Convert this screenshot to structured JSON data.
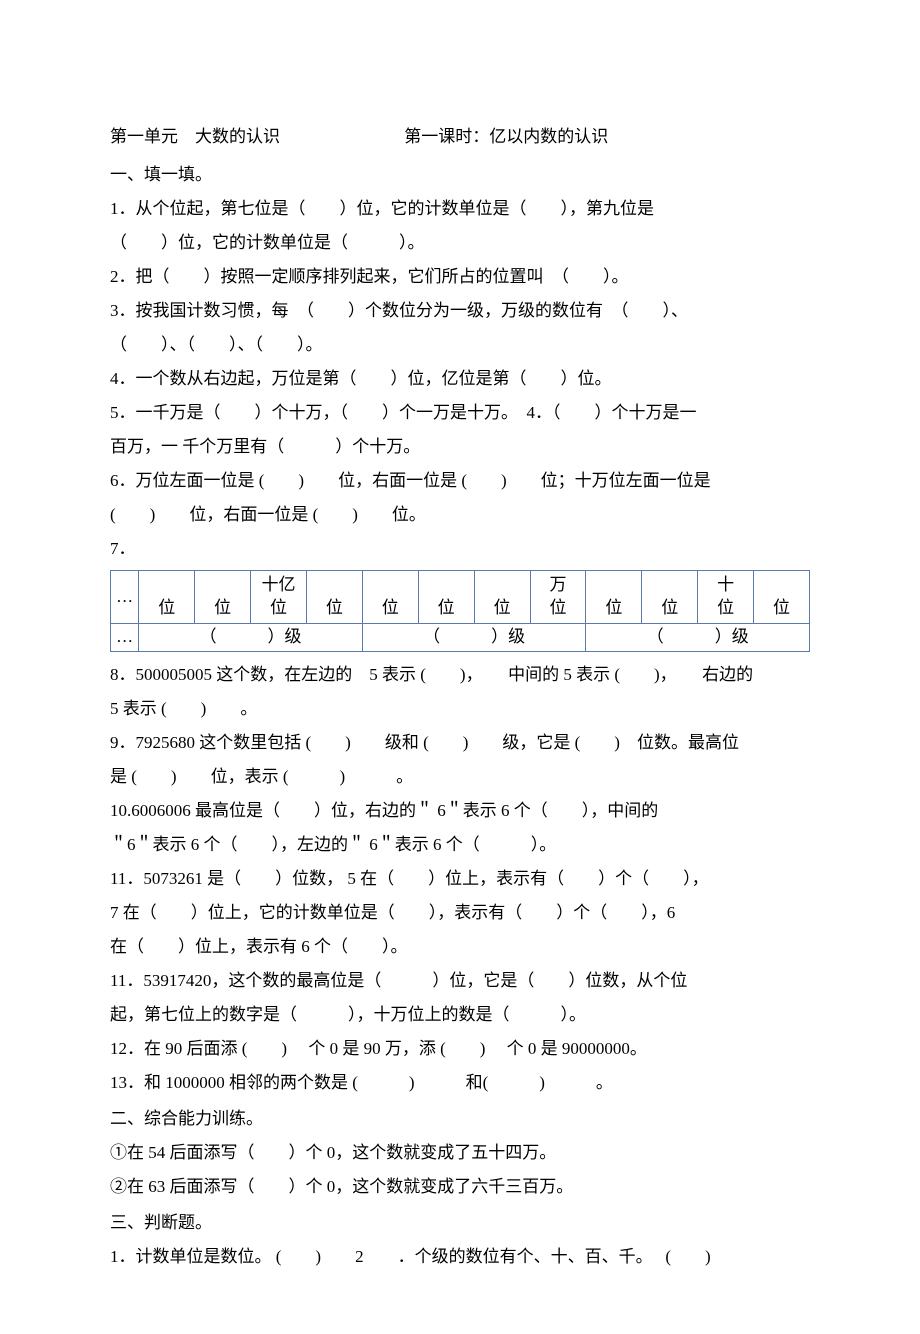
{
  "title": {
    "unit": "第一单元　大数的认识",
    "lesson": "第一课时：亿以内数的认识"
  },
  "section1": {
    "heading": "一、填一填。",
    "q1a": "1．从个位起，第七位是（　　）位，它的计数单位是（　　），第九位是",
    "q1b": "（　　）位，它的计数单位是（　　　）。",
    "q2": "2．把（　　）按照一定顺序排列起来，它们所占的位置叫　（　　）。",
    "q3a": "3．按我国计数习惯，每　（　　）个数位分为一级，万级的数位有　（　　）、",
    "q3b": "（　　）、（　　）、（　　）。",
    "q4": "4．一个数从右边起，万位是第（　　）位，亿位是第（　　）位。",
    "q5a": "5．一千万是（　　）个十万，（　　）个一万是十万。　4．（　　）个十万是一",
    "q5b": "百万，一 千个万里有（　　　）个十万。",
    "q6a": "6．万位左面一位是 (　　)　　位，右面一位是 (　　)　　位；十万位左面一位是",
    "q6b": "(　　)　　位，右面一位是 (　　)　　位。",
    "q7": "7．",
    "q8a": "8．500005005 这个数，在左边的　5 表示 (　　)，　　中间的 5 表示 (　　)，　　右边的",
    "q8b": "5 表示 (　　)　　。",
    "q9a": "9．7925680 这个数里包括 (　　)　　级和 (　　)　　级，它是 (　　)　位数。最高位",
    "q9b": "是 (　　)　　位，表示 (　　　)　　　。",
    "q10a": "10.6006006 最高位是（　　）位，右边的＂ 6＂表示 6 个（　　），中间的",
    "q10b": "＂6＂表示 6 个（　　），左边的＂ 6＂表示 6 个（　　　）。",
    "q11a": "11．5073261 是（　　）位数， 5 在（　　）位上，表示有（　　）个（　　），",
    "q11b": "7 在（　　）位上，它的计数单位是（　　），表示有（　　）个（　　），6",
    "q11c": "在（　　）位上，表示有 6 个（　　）。",
    "q11d": "11．53917420，这个数的最高位是（　　　）位，它是（　　）位数，从个位",
    "q11e": "起，第七位上的数字是（　　　），十万位上的数是（　　　）。",
    "q12": "12．在 90 后面添 (　　)　 个 0 是 90 万，添 (　　)　 个 0 是 90000000。",
    "q13": "13．和 1000000 相邻的两个数是 (　　　)　　　和(　　　)　　　。"
  },
  "table": {
    "ellipsis": "…",
    "tenBillion": "十亿",
    "wan": "万",
    "ten": "十",
    "wei": "位",
    "group": "（　　　）级"
  },
  "section2": {
    "heading": "二、综合能力训练。",
    "q1": "①在 54 后面添写（　　）个 0，这个数就变成了五十四万。",
    "q2": "②在 63 后面添写（　　）个 0，这个数就变成了六千三百万。"
  },
  "section3": {
    "heading": "三、判断题。",
    "q": "1．计数单位是数位。 (　　)　　2　　．个级的数位有个、十、百、千。　 (　　)"
  }
}
